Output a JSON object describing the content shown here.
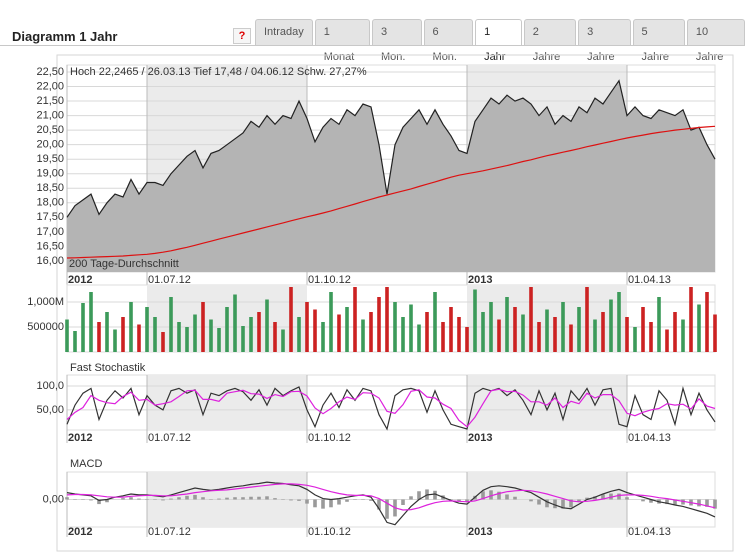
{
  "header": {
    "title": "Diagramm 1 Jahr",
    "help": "?",
    "tabs": [
      "Intraday",
      "1 Monat",
      "3 Mon.",
      "6 Mon.",
      "1 Jahr",
      "2 Jahre",
      "3 Jahre",
      "5 Jahre",
      "10 Jahre"
    ],
    "active_tab": "1 Jahr"
  },
  "chart_data": [
    {
      "type": "line",
      "area": true,
      "area_color": "#b4b4b4",
      "grid": true,
      "annotation": "Hoch 22,2465 / 26.03.13 Tief 17,48 / 04.06.12 Schw. 27,27%",
      "categories": [
        "2012",
        null,
        null,
        null,
        null,
        null,
        null,
        null,
        null,
        null,
        "01.07.12",
        null,
        null,
        null,
        null,
        null,
        null,
        null,
        null,
        null,
        null,
        null,
        null,
        null,
        null,
        null,
        null,
        null,
        null,
        null,
        "01.10.12",
        null,
        null,
        null,
        null,
        null,
        null,
        null,
        null,
        null,
        null,
        null,
        null,
        null,
        null,
        null,
        null,
        null,
        null,
        null,
        "2013",
        null,
        null,
        null,
        null,
        null,
        null,
        null,
        null,
        null,
        null,
        null,
        null,
        null,
        null,
        null,
        null,
        null,
        null,
        null,
        "01.04.13",
        null,
        null,
        null,
        null,
        null,
        null,
        null,
        null,
        null,
        null,
        null
      ],
      "ylim": [
        15.62,
        22.74
      ],
      "yticks": [
        {
          "value": 22.5,
          "label": "22,50"
        },
        {
          "value": 22,
          "label": "22,00"
        },
        {
          "value": 21.5,
          "label": "21,50"
        },
        {
          "value": 21,
          "label": "21,00"
        },
        {
          "value": 20.5,
          "label": "20,50"
        },
        {
          "value": 20,
          "label": "20,00"
        },
        {
          "value": 19.5,
          "label": "19,50"
        },
        {
          "value": 19,
          "label": "19,00"
        },
        {
          "value": 18.5,
          "label": "18,50"
        },
        {
          "value": 18,
          "label": "18,00"
        },
        {
          "value": 17.5,
          "label": "17,50"
        },
        {
          "value": 17,
          "label": "17,00"
        },
        {
          "value": 16.5,
          "label": "16,50"
        },
        {
          "value": 16,
          "label": "16,00"
        }
      ],
      "series": [
        {
          "color": "#222222",
          "values": [
            17.5,
            17.9,
            18.1,
            18.3,
            17.6,
            18.0,
            18.3,
            18.2,
            18.8,
            18.3,
            18.7,
            18.7,
            18.6,
            19.0,
            19.3,
            19.6,
            19.8,
            19.2,
            19.7,
            19.8,
            20.0,
            20.2,
            20.4,
            20.8,
            20.6,
            21.0,
            20.7,
            21.0,
            20.9,
            21.5,
            20.9,
            20.1,
            20.6,
            20.9,
            20.7,
            21.2,
            21.0,
            21.4,
            21.3,
            20.0,
            18.3,
            20.0,
            20.6,
            20.9,
            21.2,
            20.7,
            21.2,
            20.7,
            20.3,
            19.8,
            19.7,
            20.8,
            21.2,
            21.6,
            21.4,
            21.7,
            21.5,
            21.6,
            21.4,
            21.0,
            21.3,
            20.7,
            21.0,
            20.8,
            21.3,
            21.1,
            21.6,
            21.4,
            21.8,
            22.2,
            21.0,
            21.3,
            21.0,
            20.9,
            21.2,
            21.1,
            21.0,
            21.2,
            20.5,
            20.6,
            20.0,
            19.5
          ]
        },
        {
          "name": "200 Tage-Durchschnitt",
          "color": "#dd1111",
          "values": [
            16.1,
            16.11,
            16.12,
            16.13,
            16.14,
            16.15,
            16.16,
            16.17,
            16.19,
            16.21,
            16.23,
            16.26,
            16.3,
            16.35,
            16.41,
            16.47,
            16.54,
            16.61,
            16.68,
            16.75,
            16.82,
            16.89,
            16.96,
            17.03,
            17.1,
            17.17,
            17.24,
            17.31,
            17.38,
            17.45,
            17.52,
            17.58,
            17.65,
            17.72,
            17.8,
            17.88,
            17.96,
            18.04,
            18.12,
            18.2,
            18.27,
            18.34,
            18.41,
            18.48,
            18.56,
            18.64,
            18.72,
            18.8,
            18.88,
            18.95,
            19.0,
            19.05,
            19.1,
            19.16,
            19.22,
            19.28,
            19.35,
            19.42,
            19.48,
            19.55,
            19.62,
            19.68,
            19.74,
            19.8,
            19.86,
            19.93,
            19.99,
            20.05,
            20.11,
            20.17,
            20.23,
            20.28,
            20.33,
            20.38,
            20.42,
            20.46,
            20.5,
            20.53,
            20.56,
            20.59,
            20.61,
            20.63
          ]
        }
      ]
    },
    {
      "type": "bar",
      "grid": true,
      "up_color": "#3c9a5a",
      "down_color": "#cc2222",
      "ylim": [
        0,
        1340000
      ],
      "yticks": [
        {
          "value": 1000000,
          "label": "1,000M"
        },
        500000
      ],
      "values": [
        650000,
        420000,
        980000,
        1200000,
        600000,
        800000,
        450000,
        700000,
        1000000,
        550000,
        900000,
        700000,
        400000,
        1100000,
        600000,
        500000,
        750000,
        1000000,
        650000,
        480000,
        900000,
        1150000,
        520000,
        700000,
        800000,
        1050000,
        600000,
        450000,
        1300000,
        700000,
        1000000,
        850000,
        600000,
        1200000,
        750000,
        900000,
        1300000,
        650000,
        800000,
        1100000,
        1300000,
        1000000,
        700000,
        950000,
        550000,
        800000,
        1200000,
        600000,
        900000,
        700000,
        500000,
        1250000,
        800000,
        1000000,
        650000,
        1100000,
        900000,
        750000,
        1300000,
        600000,
        850000,
        700000,
        1000000,
        550000,
        900000,
        1300000,
        650000,
        800000,
        1050000,
        1200000,
        700000,
        500000,
        900000,
        600000,
        1100000,
        450000,
        800000,
        650000,
        1300000,
        950000,
        1200000,
        750000
      ]
    },
    {
      "type": "line",
      "title": "Fast Stochastik",
      "grid": true,
      "categories": [
        "2012",
        null,
        null,
        null,
        null,
        null,
        null,
        null,
        null,
        null,
        "01.07.12",
        null,
        null,
        null,
        null,
        null,
        null,
        null,
        null,
        null,
        null,
        null,
        null,
        null,
        null,
        null,
        null,
        null,
        null,
        null,
        "01.10.12",
        null,
        null,
        null,
        null,
        null,
        null,
        null,
        null,
        null,
        null,
        null,
        null,
        null,
        null,
        null,
        null,
        null,
        null,
        null,
        "2013",
        null,
        null,
        null,
        null,
        null,
        null,
        null,
        null,
        null,
        null,
        null,
        null,
        null,
        null,
        null,
        null,
        null,
        null,
        null,
        "01.04.13",
        null,
        null,
        null,
        null,
        null,
        null,
        null,
        null,
        null,
        null,
        null
      ],
      "ylim": [
        8,
        123
      ],
      "yticks": [
        {
          "value": 100,
          "label": "100,0"
        },
        {
          "value": 50,
          "label": "50,00"
        }
      ],
      "series": [
        {
          "color": "#333333",
          "values": [
            20,
            60,
            85,
            95,
            30,
            70,
            90,
            75,
            95,
            40,
            80,
            60,
            50,
            90,
            95,
            85,
            92,
            40,
            85,
            80,
            90,
            95,
            88,
            70,
            92,
            60,
            95,
            80,
            90,
            98,
            50,
            15,
            60,
            85,
            55,
            92,
            70,
            95,
            90,
            40,
            10,
            80,
            92,
            95,
            90,
            45,
            90,
            50,
            20,
            15,
            10,
            85,
            95,
            90,
            95,
            80,
            92,
            70,
            40,
            90,
            50,
            85,
            30,
            90,
            70,
            95,
            60,
            92,
            95,
            20,
            15,
            80,
            40,
            30,
            90,
            70,
            20,
            95,
            40,
            85,
            50,
            25
          ]
        },
        {
          "color": "#dd22dd",
          "values": [
            30,
            45,
            55,
            80,
            70,
            65,
            63,
            78,
            87,
            70,
            72,
            60,
            63,
            67,
            78,
            90,
            91,
            72,
            72,
            68,
            85,
            88,
            91,
            84,
            83,
            74,
            82,
            78,
            88,
            89,
            79,
            54,
            42,
            53,
            67,
            77,
            72,
            86,
            85,
            75,
            47,
            43,
            61,
            89,
            92,
            77,
            75,
            62,
            53,
            28,
            15,
            35,
            63,
            90,
            93,
            88,
            89,
            81,
            67,
            67,
            60,
            75,
            55,
            68,
            63,
            85,
            75,
            82,
            82,
            69,
            43,
            38,
            45,
            50,
            53,
            63,
            60,
            62,
            52,
            73,
            58,
            53
          ]
        }
      ]
    },
    {
      "type": "line",
      "title": "MACD",
      "grid": true,
      "categories": [
        "2012",
        null,
        null,
        null,
        null,
        null,
        null,
        null,
        null,
        null,
        "01.07.12",
        null,
        null,
        null,
        null,
        null,
        null,
        null,
        null,
        null,
        null,
        null,
        null,
        null,
        null,
        null,
        null,
        null,
        null,
        null,
        "01.10.12",
        null,
        null,
        null,
        null,
        null,
        null,
        null,
        null,
        null,
        null,
        null,
        null,
        null,
        null,
        null,
        null,
        null,
        null,
        null,
        "2013",
        null,
        null,
        null,
        null,
        null,
        null,
        null,
        null,
        null,
        null,
        null,
        null,
        null,
        null,
        null,
        null,
        null,
        null,
        null,
        "01.04.13",
        null,
        null,
        null,
        null,
        null,
        null,
        null,
        null,
        null,
        null,
        null
      ],
      "ylim": [
        -0.6,
        0.6
      ],
      "yticks": [
        {
          "value": 0,
          "label": "0,00"
        }
      ],
      "series": [
        {
          "type": "bar",
          "color": "#9a9a9a",
          "values": [
            0.05,
            0.01,
            -0.01,
            -0.02,
            -0.1,
            -0.06,
            0,
            0.03,
            0.05,
            0.02,
            0.01,
            -0.01,
            -0.02,
            0.02,
            0.05,
            0.08,
            0.1,
            0.05,
            0.01,
            0.02,
            0.04,
            0.05,
            0.05,
            0.06,
            0.06,
            0.07,
            0.03,
            0.01,
            -0.02,
            -0.03,
            -0.09,
            -0.17,
            -0.2,
            -0.17,
            -0.11,
            -0.05,
            -0.01,
            0.01,
            -0.03,
            -0.22,
            -0.42,
            -0.37,
            -0.12,
            0.07,
            0.18,
            0.22,
            0.19,
            0.09,
            0.01,
            -0.04,
            -0.05,
            0.08,
            0.18,
            0.2,
            0.17,
            0.11,
            0.06,
            0,
            -0.04,
            -0.11,
            -0.17,
            -0.19,
            -0.2,
            -0.17,
            -0.05,
            0.04,
            0.07,
            0.11,
            0.13,
            0.13,
            0.05,
            0,
            -0.04,
            -0.07,
            -0.09,
            -0.1,
            -0.11,
            -0.11,
            -0.13,
            -0.15,
            -0.16,
            -0.2
          ]
        },
        {
          "color": "#333333",
          "values": [
            0.15,
            0.12,
            0.1,
            0.08,
            -0.02,
            0.0,
            0.05,
            0.08,
            0.12,
            0.1,
            0.1,
            0.08,
            0.06,
            0.1,
            0.15,
            0.2,
            0.25,
            0.22,
            0.2,
            0.22,
            0.25,
            0.28,
            0.3,
            0.33,
            0.35,
            0.38,
            0.36,
            0.35,
            0.32,
            0.3,
            0.22,
            0.1,
            0.02,
            0.0,
            0.02,
            0.05,
            0.08,
            0.1,
            0.05,
            -0.2,
            -0.5,
            -0.55,
            -0.35,
            -0.15,
            0.0,
            0.1,
            0.12,
            0.05,
            -0.02,
            -0.08,
            -0.1,
            0.05,
            0.2,
            0.28,
            0.3,
            0.28,
            0.25,
            0.2,
            0.15,
            0.05,
            -0.05,
            -0.12,
            -0.18,
            -0.2,
            -0.1,
            0.0,
            0.05,
            0.12,
            0.18,
            0.22,
            0.15,
            0.1,
            0.05,
            0.0,
            -0.05,
            -0.08,
            -0.12,
            -0.15,
            -0.2,
            -0.25,
            -0.3,
            -0.38
          ]
        },
        {
          "color": "#dd22dd",
          "values": [
            0.1,
            0.11,
            0.11,
            0.1,
            0.08,
            0.06,
            0.05,
            0.05,
            0.07,
            0.08,
            0.09,
            0.09,
            0.08,
            0.08,
            0.1,
            0.12,
            0.15,
            0.17,
            0.19,
            0.2,
            0.21,
            0.23,
            0.25,
            0.27,
            0.29,
            0.31,
            0.33,
            0.34,
            0.34,
            0.33,
            0.31,
            0.27,
            0.22,
            0.17,
            0.13,
            0.1,
            0.09,
            0.09,
            0.08,
            0.02,
            -0.08,
            -0.18,
            -0.23,
            -0.22,
            -0.18,
            -0.12,
            -0.07,
            -0.04,
            -0.03,
            -0.04,
            -0.05,
            -0.03,
            0.02,
            0.08,
            0.13,
            0.17,
            0.19,
            0.2,
            0.19,
            0.16,
            0.12,
            0.07,
            0.02,
            -0.03,
            -0.05,
            -0.04,
            -0.02,
            0.01,
            0.05,
            0.09,
            0.1,
            0.1,
            0.09,
            0.07,
            0.04,
            0.02,
            -0.01,
            -0.04,
            -0.07,
            -0.1,
            -0.14,
            -0.18
          ]
        }
      ]
    }
  ]
}
